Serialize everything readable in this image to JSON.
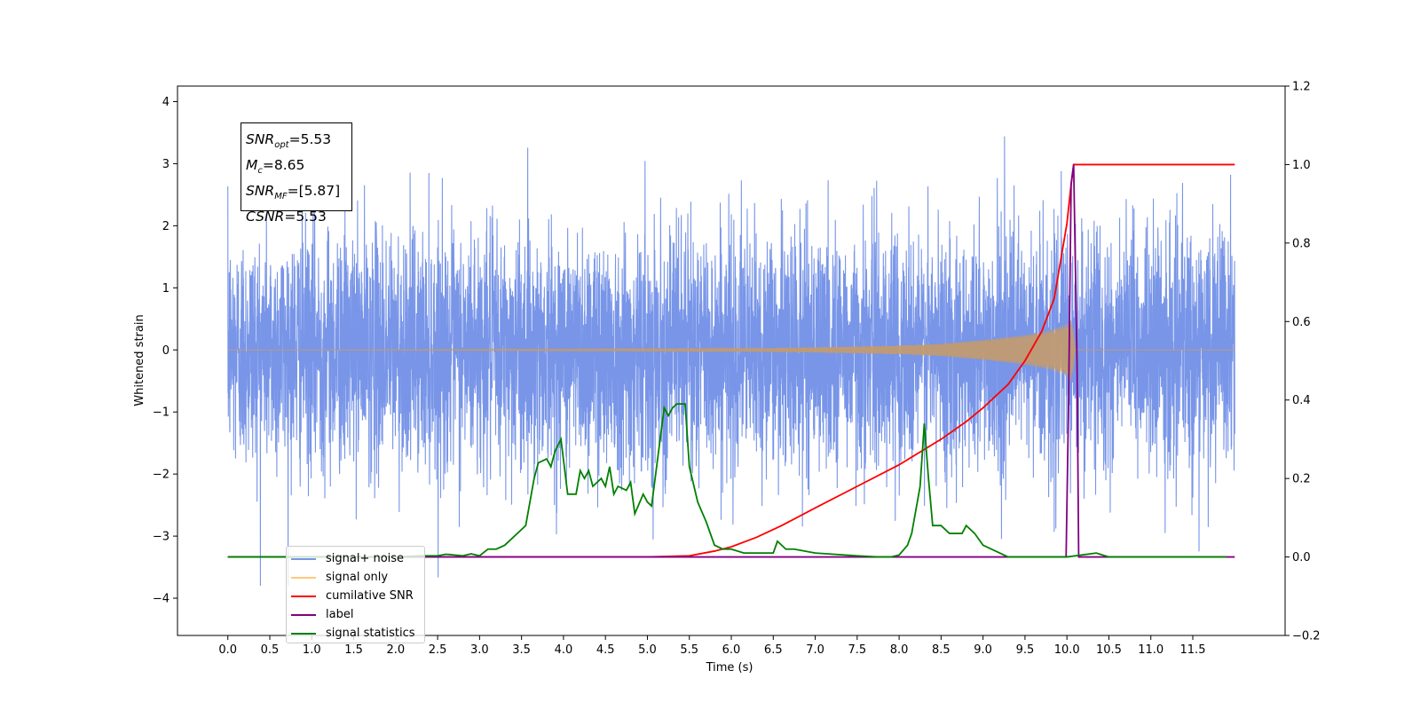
{
  "chart_data": {
    "type": "line",
    "xlabel": "Time (s)",
    "ylabel": "Whitened strain",
    "xlim": [
      -0.6,
      12.6
    ],
    "ylim": [
      -4.6,
      4.25
    ],
    "y2lim": [
      -0.2,
      1.2
    ],
    "x_ticks": [
      "0.0",
      "0.5",
      "1.0",
      "1.5",
      "2.0",
      "2.5",
      "3.0",
      "3.5",
      "4.0",
      "4.5",
      "5.0",
      "5.5",
      "6.0",
      "6.5",
      "7.0",
      "7.5",
      "8.0",
      "8.5",
      "9.0",
      "9.5",
      "10.0",
      "10.5",
      "11.0",
      "11.5"
    ],
    "y_ticks": [
      "4",
      "3",
      "2",
      "1",
      "0",
      "−1",
      "−2",
      "−3",
      "−4"
    ],
    "y2_ticks": [
      "1.2",
      "1.0",
      "0.8",
      "0.6",
      "0.4",
      "0.2",
      "0.0",
      "−0.2"
    ],
    "info": [
      {
        "v": "SNR",
        "sub": "opt",
        "val": "=5.53"
      },
      {
        "v": "M",
        "sub": "c",
        "val": "=8.65"
      },
      {
        "v": "SNR",
        "sub": "MF",
        "val": "=[5.87]"
      },
      {
        "v": "CSNR",
        "sub": "",
        "val": "=5.53"
      }
    ],
    "legend": [
      {
        "label": "signal+ noise",
        "color": "#7895e8"
      },
      {
        "label": "signal only",
        "color": "#ffc87a"
      },
      {
        "label": "cumilative SNR",
        "color": "#ff0000"
      },
      {
        "label": "label",
        "color": "#800080"
      },
      {
        "label": "signal statistics",
        "color": "#008000"
      }
    ],
    "series": [
      {
        "name": "signal+ noise",
        "color": "#7895e8",
        "x_start": 0.0,
        "x_end": 12.0,
        "std": 1.0,
        "max": 3.85,
        "min": -3.8
      },
      {
        "name": "signal only",
        "color": "#c49a6c",
        "x_start": 0.0,
        "x_end": 12.0,
        "envelope": [
          [
            0.0,
            0.0
          ],
          [
            6.0,
            0.02
          ],
          [
            7.0,
            0.04
          ],
          [
            8.0,
            0.07
          ],
          [
            8.5,
            0.1
          ],
          [
            9.0,
            0.16
          ],
          [
            9.5,
            0.24
          ],
          [
            9.8,
            0.32
          ],
          [
            10.0,
            0.42
          ],
          [
            10.05,
            0.55
          ],
          [
            10.1,
            0.0
          ],
          [
            12.0,
            0.0
          ]
        ]
      },
      {
        "name": "cumilative SNR",
        "color": "#ff0000",
        "axis": "right",
        "x": [
          0.0,
          5.0,
          5.5,
          5.8,
          6.0,
          6.3,
          6.6,
          7.0,
          7.5,
          8.0,
          8.5,
          8.8,
          9.0,
          9.3,
          9.5,
          9.7,
          9.85,
          10.0,
          10.05,
          10.08,
          10.12,
          12.0
        ],
        "y": [
          0.0,
          0.0,
          0.003,
          0.015,
          0.026,
          0.05,
          0.08,
          0.125,
          0.18,
          0.235,
          0.3,
          0.345,
          0.38,
          0.44,
          0.5,
          0.575,
          0.66,
          0.85,
          0.95,
          1.0,
          1.0,
          1.0
        ]
      },
      {
        "name": "label",
        "color": "#800080",
        "axis": "right",
        "x": [
          0.0,
          9.99,
          10.02,
          10.05,
          10.08,
          10.12,
          10.14,
          10.16,
          12.0
        ],
        "y": [
          0.0,
          0.0,
          0.4,
          0.95,
          1.0,
          0.5,
          0.0,
          0.0,
          0.0
        ]
      },
      {
        "name": "signal statistics",
        "color": "#008000",
        "axis": "right",
        "x": [
          0.0,
          2.0,
          2.3,
          2.5,
          2.6,
          2.8,
          2.9,
          3.0,
          3.1,
          3.2,
          3.3,
          3.5,
          3.55,
          3.65,
          3.7,
          3.8,
          3.85,
          3.9,
          3.97,
          4.05,
          4.15,
          4.2,
          4.25,
          4.3,
          4.35,
          4.45,
          4.5,
          4.55,
          4.6,
          4.65,
          4.75,
          4.8,
          4.85,
          4.95,
          5.0,
          5.05,
          5.2,
          5.25,
          5.3,
          5.35,
          5.45,
          5.5,
          5.6,
          5.7,
          5.8,
          5.9,
          6.0,
          6.15,
          6.3,
          6.5,
          6.55,
          6.65,
          6.75,
          7.0,
          7.5,
          7.75,
          7.9,
          8.0,
          8.1,
          8.15,
          8.25,
          8.3,
          8.35,
          8.4,
          8.5,
          8.6,
          8.75,
          8.8,
          8.9,
          9.0,
          9.3,
          9.5,
          10.0,
          10.35,
          10.5,
          11.0,
          11.5,
          11.9
        ],
        "y": [
          0.0,
          0.0,
          0.003,
          0.003,
          0.007,
          0.003,
          0.008,
          0.003,
          0.02,
          0.02,
          0.03,
          0.07,
          0.08,
          0.2,
          0.24,
          0.25,
          0.23,
          0.27,
          0.3,
          0.16,
          0.16,
          0.22,
          0.2,
          0.22,
          0.18,
          0.2,
          0.18,
          0.23,
          0.16,
          0.18,
          0.17,
          0.19,
          0.11,
          0.16,
          0.14,
          0.13,
          0.38,
          0.36,
          0.38,
          0.39,
          0.39,
          0.23,
          0.14,
          0.09,
          0.03,
          0.02,
          0.02,
          0.01,
          0.01,
          0.01,
          0.04,
          0.02,
          0.02,
          0.01,
          0.003,
          0.0,
          0.0,
          0.005,
          0.03,
          0.06,
          0.18,
          0.34,
          0.2,
          0.08,
          0.08,
          0.06,
          0.06,
          0.08,
          0.06,
          0.03,
          0.0,
          0.0,
          0.0,
          0.01,
          0.0,
          0.0,
          0.0,
          0.0
        ]
      }
    ]
  }
}
